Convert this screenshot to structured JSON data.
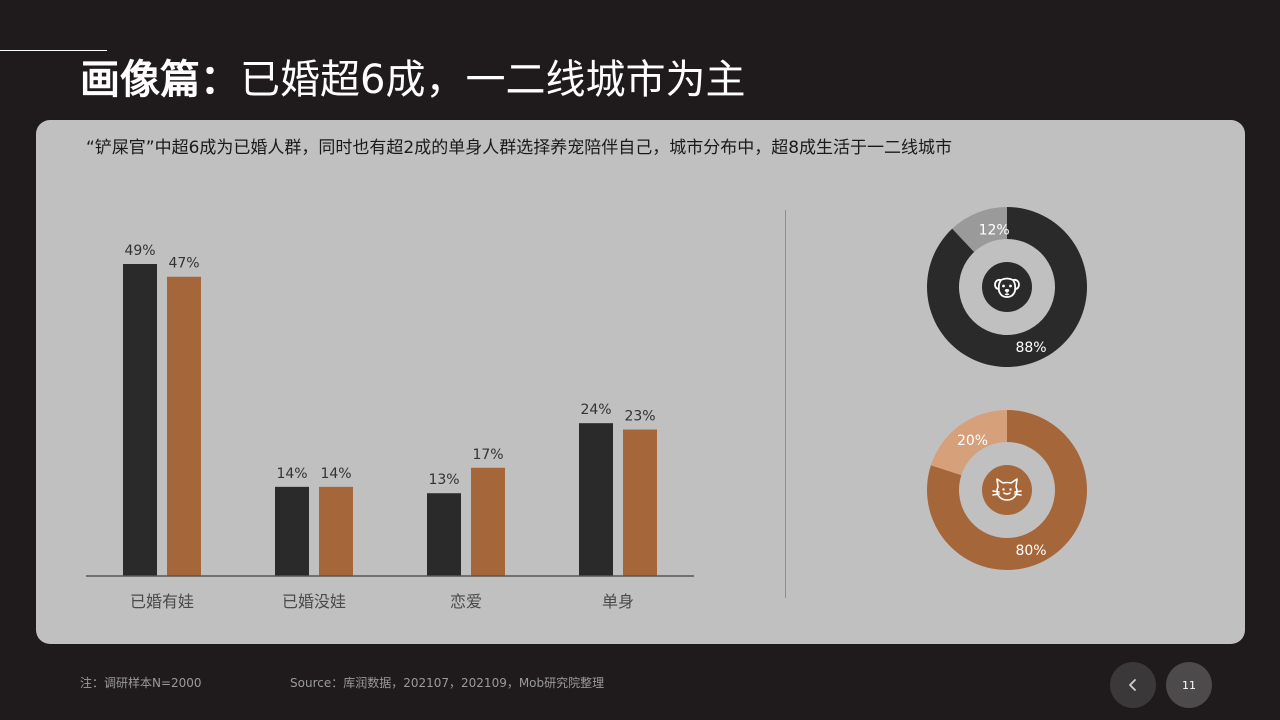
{
  "title": {
    "bold": "画像篇：",
    "rest": "已婚超6成，一二线城市为主"
  },
  "subtitle": "“铲屎官”中超6成为已婚人群，同时也有超2成的单身人群选择养宠陪伴自己，城市分布中，超8成生活于一二线城市",
  "colors": {
    "dark": "#2b2a2b",
    "brown": "#a56739",
    "gray": "#9a9a9a",
    "light_brown": "#d6a07a",
    "panel": "#c0c0c0"
  },
  "chart_data": [
    {
      "type": "bar",
      "categories": [
        "已婚有娃",
        "已婚没娃",
        "恋爱",
        "单身"
      ],
      "series": [
        {
          "name": "dark",
          "color": "#2b2a2b",
          "values": [
            49,
            14,
            13,
            24
          ]
        },
        {
          "name": "brown",
          "color": "#a56739",
          "values": [
            47,
            14,
            17,
            23
          ]
        }
      ],
      "value_labels": [
        [
          "49%",
          "14%",
          "13%",
          "24%"
        ],
        [
          "47%",
          "14%",
          "17%",
          "23%"
        ]
      ],
      "ylim": [
        0,
        50
      ],
      "grid": false,
      "legend": "none"
    },
    {
      "type": "pie",
      "icon": "dog-icon",
      "slices": [
        {
          "value": 88,
          "label": "88%",
          "color": "#2b2a2b"
        },
        {
          "value": 12,
          "label": "12%",
          "color": "#9a9a9a"
        }
      ]
    },
    {
      "type": "pie",
      "icon": "cat-icon",
      "slices": [
        {
          "value": 80,
          "label": "80%",
          "color": "#a56739"
        },
        {
          "value": 20,
          "label": "20%",
          "color": "#d6a07a"
        }
      ]
    }
  ],
  "footer": {
    "note": "注：调研样本N=2000",
    "source": "Source：库润数据，202107，202109，Mob研究院整理"
  },
  "nav": {
    "prev_icon": "chevron-left-icon",
    "page_number": "11"
  }
}
